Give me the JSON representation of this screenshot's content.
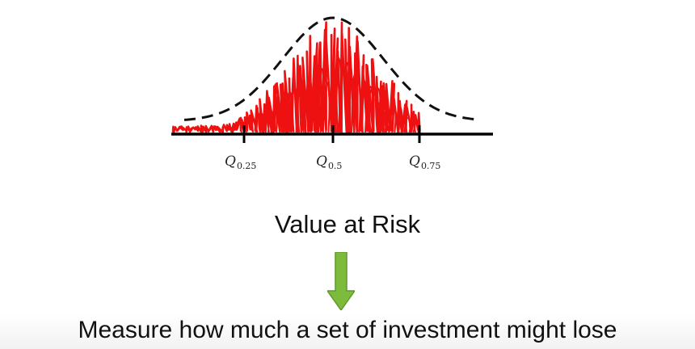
{
  "diagram": {
    "quantile_labels": [
      {
        "symbol": "Q",
        "sub": "0.25"
      },
      {
        "symbol": "Q",
        "sub": "0.5"
      },
      {
        "symbol": "Q",
        "sub": "0.75"
      }
    ],
    "colors": {
      "scribble": "#ee1111",
      "curve": "#111111",
      "axis": "#000000",
      "arrow": "#7dbb3c"
    }
  },
  "title": "Value at Risk",
  "subtitle": "Measure how much a set of investment might  lose"
}
